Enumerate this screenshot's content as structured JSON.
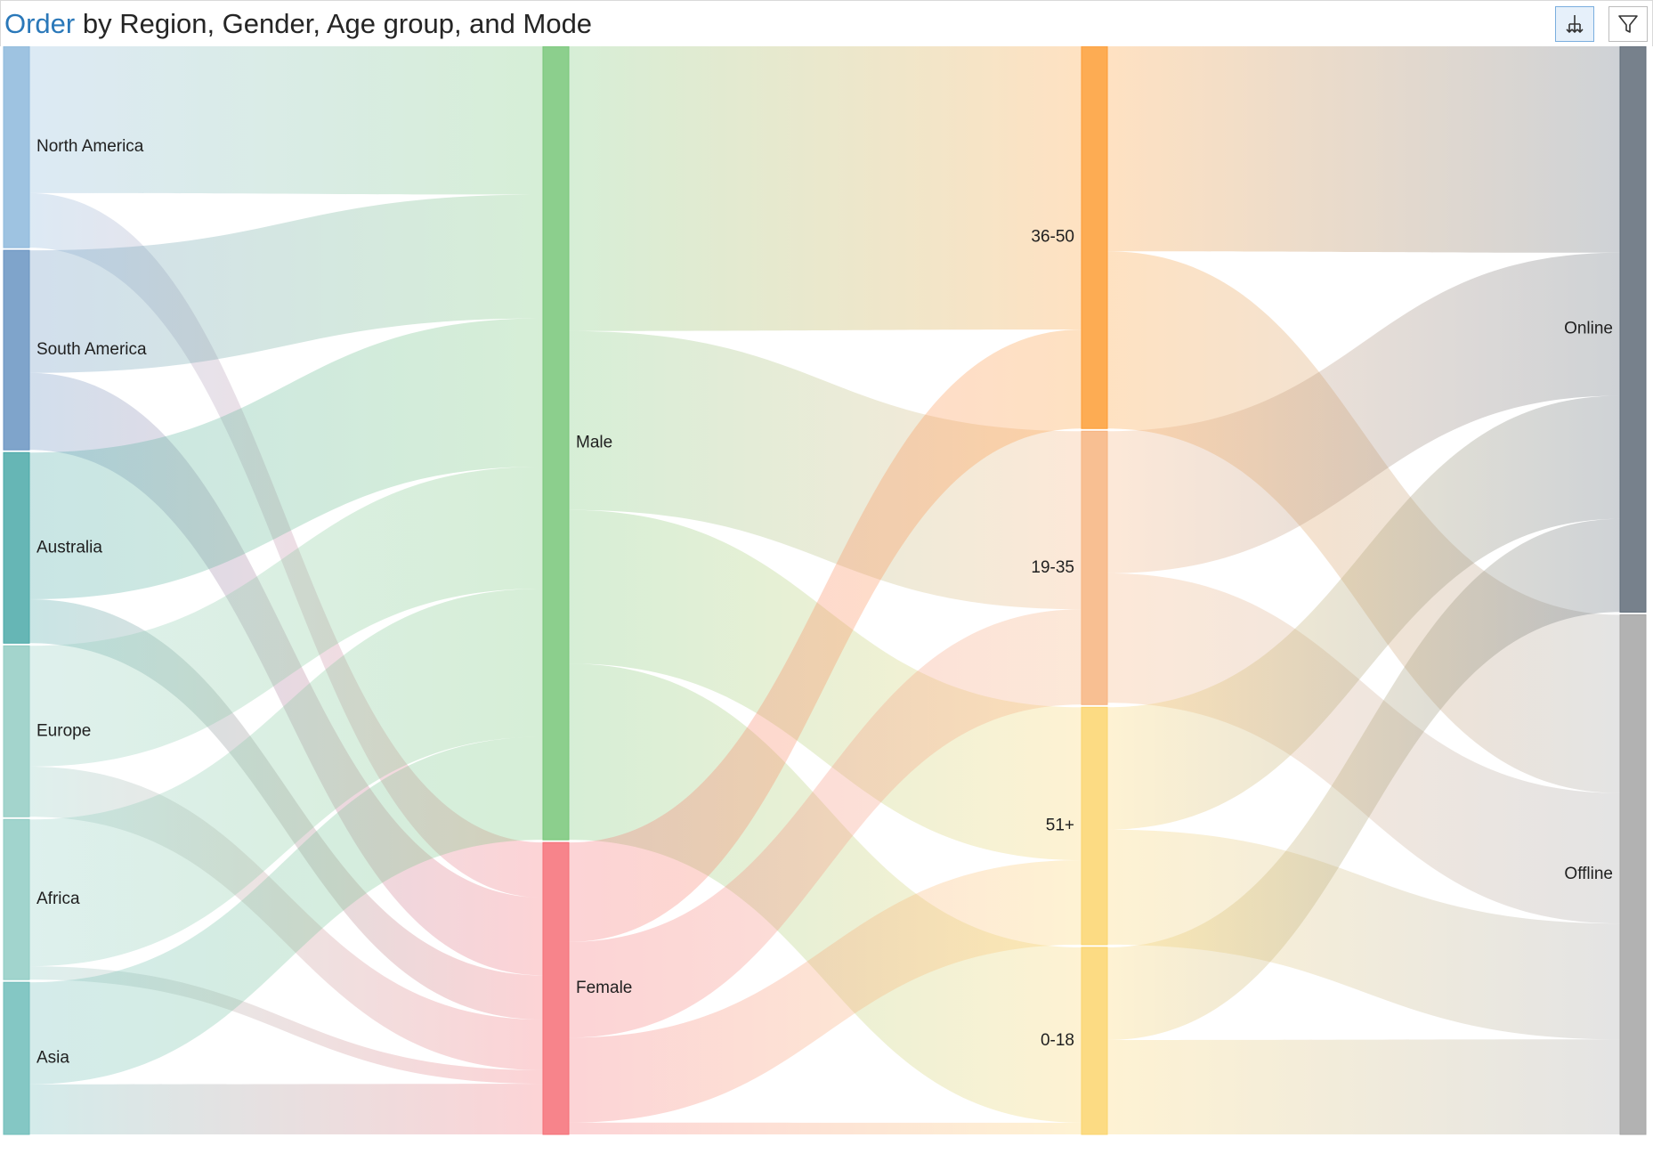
{
  "title": {
    "accent": "Order",
    "rest": " by Region, Gender, Age group, and Mode"
  },
  "toolbar": {
    "drill_icon": "drill-down-icon",
    "filter_icon": "filter-funnel-icon"
  },
  "chart_data": {
    "type": "sankey",
    "columns": [
      [
        {
          "id": "North America",
          "label": "North America",
          "color": "#8db8dc"
        },
        {
          "id": "South America",
          "label": "South America",
          "color": "#6994c2"
        },
        {
          "id": "Australia",
          "label": "Australia",
          "color": "#4ba9a8"
        },
        {
          "id": "Europe",
          "label": "Europe",
          "color": "#93cdc3"
        },
        {
          "id": "Africa",
          "label": "Africa",
          "color": "#90ccc4"
        },
        {
          "id": "Asia",
          "label": "Asia",
          "color": "#6fbdba"
        }
      ],
      [
        {
          "id": "Male",
          "label": "Male",
          "color": "#78c779"
        },
        {
          "id": "Female",
          "label": "Female",
          "color": "#f66f77"
        }
      ],
      [
        {
          "id": "36-50",
          "label": "36-50",
          "color": "#fd9d35"
        },
        {
          "id": "19-35",
          "label": "19-35",
          "color": "#f7b47f"
        },
        {
          "id": "51+",
          "label": "51+",
          "color": "#fbd56d"
        },
        {
          "id": "0-18",
          "label": "0-18",
          "color": "#fbd56d"
        }
      ],
      [
        {
          "id": "Online",
          "label": "Online",
          "color": "#5f6b78"
        },
        {
          "id": "Offline",
          "label": "Offline",
          "color": "#a5a5a5"
        }
      ]
    ],
    "links": [
      {
        "source": "North America",
        "target": "Male",
        "value": 164
      },
      {
        "source": "North America",
        "target": "Female",
        "value": 61
      },
      {
        "source": "South America",
        "target": "Male",
        "value": 137
      },
      {
        "source": "South America",
        "target": "Female",
        "value": 86
      },
      {
        "source": "Australia",
        "target": "Male",
        "value": 164
      },
      {
        "source": "Australia",
        "target": "Female",
        "value": 49
      },
      {
        "source": "Europe",
        "target": "Male",
        "value": 135
      },
      {
        "source": "Europe",
        "target": "Female",
        "value": 56
      },
      {
        "source": "Africa",
        "target": "Male",
        "value": 164
      },
      {
        "source": "Africa",
        "target": "Female",
        "value": 15
      },
      {
        "source": "Asia",
        "target": "Male",
        "value": 114
      },
      {
        "source": "Asia",
        "target": "Female",
        "value": 56
      },
      {
        "source": "Male",
        "target": "36-50",
        "value": 315
      },
      {
        "source": "Male",
        "target": "19-35",
        "value": 198
      },
      {
        "source": "Male",
        "target": "0-18",
        "value": 195
      },
      {
        "source": "Male",
        "target": "51+",
        "value": 170
      },
      {
        "source": "Female",
        "target": "36-50",
        "value": 110
      },
      {
        "source": "Female",
        "target": "19-35",
        "value": 106
      },
      {
        "source": "Female",
        "target": "51+",
        "value": 94
      },
      {
        "source": "Female",
        "target": "0-18",
        "value": 13
      },
      {
        "source": "36-50",
        "target": "Online",
        "value": 228
      },
      {
        "source": "36-50",
        "target": "Offline",
        "value": 197
      },
      {
        "source": "19-35",
        "target": "Online",
        "value": 158
      },
      {
        "source": "19-35",
        "target": "Offline",
        "value": 144
      },
      {
        "source": "51+",
        "target": "Online",
        "value": 136
      },
      {
        "source": "51+",
        "target": "Offline",
        "value": 128
      },
      {
        "source": "0-18",
        "target": "Online",
        "value": 103
      },
      {
        "source": "0-18",
        "target": "Offline",
        "value": 105
      }
    ]
  }
}
